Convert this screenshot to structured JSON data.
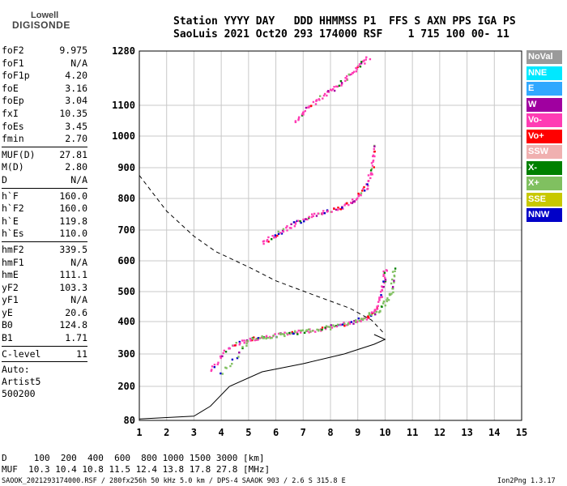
{
  "logo": {
    "line1": "Lowell",
    "line2": "DIGISONDE"
  },
  "header": {
    "line1": "Station YYYY DAY   DDD HHMMSS P1  FFS S AXN PPS IGA PS",
    "line2": "SaoLuis 2021 Oct20 293 174000 RSF    1 715 100 00- 11"
  },
  "params": {
    "group1": [
      {
        "k": "foF2",
        "v": "9.975"
      },
      {
        "k": "foF1",
        "v": "N/A"
      },
      {
        "k": "foF1p",
        "v": "4.20"
      },
      {
        "k": "foE",
        "v": "3.16"
      },
      {
        "k": "foEp",
        "v": "3.04"
      },
      {
        "k": "fxI",
        "v": "10.35"
      },
      {
        "k": "foEs",
        "v": "3.45"
      },
      {
        "k": "fmin",
        "v": "2.70"
      }
    ],
    "group2": [
      {
        "k": "MUF(D)",
        "v": "27.81"
      },
      {
        "k": "M(D)",
        "v": "2.80"
      },
      {
        "k": "D",
        "v": "N/A"
      }
    ],
    "group3": [
      {
        "k": "h`F",
        "v": "160.0"
      },
      {
        "k": "h`F2",
        "v": "160.0"
      },
      {
        "k": "h`E",
        "v": "119.8"
      },
      {
        "k": "h`Es",
        "v": "110.0"
      }
    ],
    "group4": [
      {
        "k": "hmF2",
        "v": "339.5"
      },
      {
        "k": "hmF1",
        "v": "N/A"
      },
      {
        "k": "hmE",
        "v": "111.1"
      },
      {
        "k": "yF2",
        "v": "103.3"
      },
      {
        "k": "yF1",
        "v": "N/A"
      },
      {
        "k": "yE",
        "v": "20.6"
      },
      {
        "k": "B0",
        "v": "124.8"
      },
      {
        "k": "B1",
        "v": "1.71"
      }
    ],
    "group5": [
      {
        "k": "C-level",
        "v": "11"
      }
    ],
    "auto": [
      "Auto:",
      "Artist5",
      "500200"
    ]
  },
  "legend": [
    {
      "label": "NoVal",
      "color": "#9a9a9a"
    },
    {
      "label": "NNE",
      "color": "#00e8ff"
    },
    {
      "label": "E",
      "color": "#30a8ff"
    },
    {
      "label": "W",
      "color": "#a000a0"
    },
    {
      "label": "Vo-",
      "color": "#ff3cb4"
    },
    {
      "label": "Vo+",
      "color": "#ff0000"
    },
    {
      "label": "SSW",
      "color": "#f0b0b0"
    },
    {
      "label": "X-",
      "color": "#008000"
    },
    {
      "label": "X+",
      "color": "#80c060"
    },
    {
      "label": "SSE",
      "color": "#c8c800"
    },
    {
      "label": "NNW",
      "color": "#0000c8"
    }
  ],
  "bottom": {
    "dist": "D     100  200  400  600  800 1000 1500 3000 [km]",
    "muf": "MUF  10.3 10.4 10.8 11.5 12.4 13.8 17.8 27.8 [MHz]",
    "footer_left": "SAOOK_2021293174000.RSF / 280fx256h 50 kHz 5.0 km / DPS-4 SAAOK 903 / 2.6 S 315.8 E",
    "footer_right": "Ion2Png 1.3.17"
  },
  "chart_data": {
    "type": "scatter",
    "xlim": [
      1,
      15
    ],
    "ylim": [
      80,
      1280
    ],
    "x_ticks": [
      "1",
      "2",
      "3",
      "4",
      "5",
      "6",
      "7",
      "8",
      "9",
      "10",
      "11",
      "12",
      "13",
      "14",
      "15"
    ],
    "y_ticks": [
      "80",
      "200",
      "300",
      "400",
      "500",
      "600",
      "700",
      "800",
      "900",
      "1000",
      "1100",
      "1280"
    ],
    "y_tick_values": [
      80,
      200,
      300,
      400,
      500,
      600,
      700,
      800,
      900,
      1000,
      1100,
      1280
    ],
    "grid": true,
    "series": [
      {
        "name": "Vo-",
        "color": "#ff3cb4",
        "points": [
          [
            3.6,
            250
          ],
          [
            4.2,
            320
          ],
          [
            4.8,
            345
          ],
          [
            5.5,
            355
          ],
          [
            6.5,
            365
          ],
          [
            7.5,
            378
          ],
          [
            8.5,
            395
          ],
          [
            9.3,
            415
          ],
          [
            9.7,
            450
          ],
          [
            9.9,
            520
          ],
          [
            10.0,
            580
          ]
        ]
      },
      {
        "name": "X+",
        "color": "#80c060",
        "points": [
          [
            4.0,
            240
          ],
          [
            5.0,
            345
          ],
          [
            6.0,
            360
          ],
          [
            7.0,
            372
          ],
          [
            8.0,
            385
          ],
          [
            9.0,
            405
          ],
          [
            9.8,
            440
          ],
          [
            10.2,
            500
          ],
          [
            10.3,
            580
          ]
        ]
      },
      {
        "name": "Vo-",
        "color": "#ff3cb4",
        "points": [
          [
            5.5,
            660
          ],
          [
            6.0,
            690
          ],
          [
            6.6,
            720
          ],
          [
            7.2,
            745
          ],
          [
            7.8,
            760
          ],
          [
            8.4,
            775
          ],
          [
            8.9,
            800
          ],
          [
            9.3,
            840
          ],
          [
            9.5,
            900
          ],
          [
            9.6,
            980
          ]
        ]
      },
      {
        "name": "Vo-",
        "color": "#ff3cb4",
        "points": [
          [
            6.7,
            1050
          ],
          [
            7.2,
            1100
          ],
          [
            7.8,
            1140
          ],
          [
            8.4,
            1180
          ],
          [
            8.9,
            1220
          ],
          [
            9.4,
            1265
          ]
        ]
      }
    ],
    "profile_solid": [
      [
        1,
        85
      ],
      [
        3,
        95
      ],
      [
        3.6,
        130
      ],
      [
        4.3,
        200
      ],
      [
        5.5,
        245
      ],
      [
        7.0,
        270
      ],
      [
        8.5,
        300
      ],
      [
        9.6,
        330
      ],
      [
        10.0,
        345
      ],
      [
        9.6,
        360
      ]
    ],
    "profile_dashed": [
      [
        1,
        875
      ],
      [
        2.0,
        760
      ],
      [
        3.0,
        680
      ],
      [
        3.8,
        630
      ],
      [
        5.0,
        580
      ],
      [
        6.0,
        535
      ],
      [
        7.5,
        485
      ],
      [
        8.7,
        445
      ],
      [
        9.5,
        405
      ],
      [
        10.0,
        360
      ]
    ]
  }
}
